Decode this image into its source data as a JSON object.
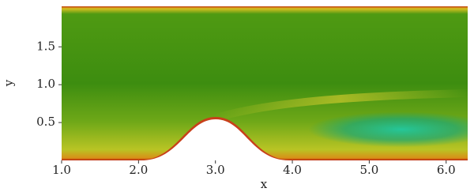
{
  "chart_data": {
    "type": "field",
    "xlabel": "x",
    "ylabel": "y",
    "xlim": [
      1.0,
      6.28
    ],
    "ylim": [
      0,
      2.035
    ],
    "xticks": [
      {
        "value": 1.0,
        "label": "1.0"
      },
      {
        "value": 2.0,
        "label": "2.0"
      },
      {
        "value": 3.0,
        "label": "3.0"
      },
      {
        "value": 4.0,
        "label": "4.0"
      },
      {
        "value": 5.0,
        "label": "5.0"
      },
      {
        "value": 6.0,
        "label": "6.0"
      }
    ],
    "yticks": [
      0.5,
      {
        "value": 1.0,
        "label": "1.0"
      },
      {
        "value": 1.5,
        "label": "1.5"
      }
    ]
  }
}
